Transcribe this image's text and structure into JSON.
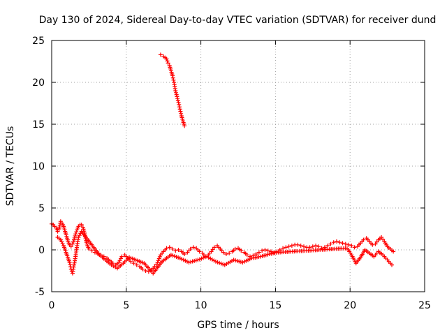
{
  "chart_data": {
    "type": "scatter",
    "title": "Day 130 of 2024, Sidereal Day-to-day VTEC variation (SDTVAR) for receiver dund",
    "xlabel": "GPS time / hours",
    "ylabel": "SDTVAR / TECUs",
    "xlim": [
      0,
      25
    ],
    "ylim": [
      -5,
      25
    ],
    "xticks": [
      "0",
      "5",
      "10",
      "15",
      "20",
      "25"
    ],
    "yticks": [
      "-5",
      "0",
      "5",
      "10",
      "15",
      "20",
      "25"
    ],
    "grid": true,
    "marker": "+",
    "series": [
      {
        "name": "SDTVAR",
        "color": "#ff0000",
        "segments": [
          {
            "x": [
              7.3,
              7.5,
              7.7,
              7.8,
              7.9,
              8.0,
              8.1,
              8.2,
              8.3,
              8.4,
              8.5,
              8.6,
              8.7,
              8.8,
              8.9
            ],
            "y": [
              23.3,
              23.1,
              22.8,
              22.3,
              22.0,
              21.4,
              20.8,
              20.0,
              19.0,
              18.3,
              17.6,
              16.8,
              16.0,
              15.4,
              14.8
            ]
          },
          {
            "x": [
              0.0,
              0.1,
              0.2,
              0.3,
              0.4,
              0.5,
              0.6,
              0.7,
              0.8,
              0.9,
              1.0,
              1.1,
              1.2,
              1.3,
              1.4,
              1.5,
              1.6,
              1.7,
              1.8,
              1.9,
              2.0,
              2.1,
              2.2,
              2.3,
              2.4,
              2.5,
              2.7,
              2.9,
              3.1,
              3.3,
              3.5,
              3.7,
              3.9,
              4.1,
              4.3,
              4.5,
              4.7,
              4.9,
              5.1,
              5.3,
              5.5,
              5.7,
              5.9,
              6.1,
              6.3,
              6.5,
              6.7,
              6.9,
              7.1,
              7.3,
              7.5,
              7.7,
              7.9,
              8.1,
              8.3,
              8.5,
              8.7,
              8.9,
              9.1,
              9.3,
              9.5,
              9.7,
              9.9,
              10.1,
              10.3,
              10.5,
              10.7,
              10.9,
              11.1,
              11.3,
              11.5,
              11.7,
              11.9,
              12.1,
              12.3,
              12.5,
              12.7,
              12.9,
              13.1,
              13.3,
              13.5,
              13.7,
              13.9,
              14.1,
              14.3,
              14.5,
              14.7,
              14.9,
              15.1,
              15.3,
              15.5,
              15.7,
              15.9,
              16.1,
              16.3,
              16.5,
              16.7,
              16.9,
              17.1,
              17.3,
              17.5,
              17.7,
              17.9,
              18.1,
              18.3,
              18.5,
              18.7,
              18.9,
              19.1,
              19.3,
              19.5,
              19.7,
              19.9,
              20.1,
              20.3,
              20.5,
              20.7,
              20.9,
              21.1,
              21.3,
              21.5,
              21.7,
              21.9,
              22.1,
              22.3,
              22.5,
              22.7,
              22.9
            ],
            "y": [
              3.1,
              3.0,
              2.8,
              2.6,
              2.2,
              2.5,
              3.4,
              3.2,
              2.8,
              2.2,
              1.6,
              1.0,
              0.6,
              0.4,
              0.7,
              1.2,
              1.9,
              2.4,
              2.8,
              3.0,
              3.0,
              2.7,
              2.0,
              1.1,
              0.5,
              0.1,
              -0.1,
              -0.3,
              -0.5,
              -0.6,
              -0.8,
              -1.0,
              -1.3,
              -1.6,
              -1.8,
              -1.5,
              -0.8,
              -0.6,
              -1.0,
              -1.4,
              -1.6,
              -1.8,
              -2.0,
              -2.3,
              -2.5,
              -2.6,
              -2.4,
              -2.0,
              -1.5,
              -0.6,
              -0.2,
              0.2,
              0.3,
              0.1,
              -0.1,
              0.0,
              -0.2,
              -0.5,
              -0.3,
              0.1,
              0.3,
              0.2,
              -0.2,
              -0.4,
              -0.8,
              -0.6,
              -0.2,
              0.3,
              0.5,
              0.1,
              -0.3,
              -0.5,
              -0.4,
              -0.2,
              0.1,
              0.2,
              -0.1,
              -0.3,
              -0.6,
              -0.8,
              -0.7,
              -0.5,
              -0.3,
              -0.1,
              0.0,
              -0.1,
              -0.2,
              -0.3,
              -0.2,
              0.0,
              0.2,
              0.3,
              0.4,
              0.5,
              0.6,
              0.6,
              0.5,
              0.4,
              0.3,
              0.3,
              0.4,
              0.5,
              0.4,
              0.2,
              0.3,
              0.5,
              0.7,
              0.9,
              1.0,
              0.9,
              0.8,
              0.7,
              0.6,
              0.5,
              0.3,
              0.4,
              0.8,
              1.2,
              1.4,
              1.0,
              0.6,
              0.7,
              1.2,
              1.5,
              1.0,
              0.4,
              0.1,
              -0.2
            ]
          },
          {
            "x": [
              0.4,
              0.6,
              0.8,
              1.0,
              1.2,
              1.3,
              1.4,
              1.5,
              1.6,
              1.7,
              1.8,
              2.0,
              3.2,
              3.6,
              4.0,
              4.4,
              4.8,
              5.2,
              6.2,
              6.8,
              7.4,
              8.0,
              8.6,
              9.2,
              9.8,
              10.4,
              11.0,
              11.6,
              12.2,
              12.8,
              13.4,
              14.0,
              14.6,
              15.2,
              19.8,
              20.1,
              20.4,
              20.7,
              21.0,
              21.3,
              21.6,
              21.9,
              22.2,
              22.5,
              22.8
            ],
            "y": [
              1.5,
              1.2,
              0.5,
              -0.5,
              -1.5,
              -2.3,
              -2.8,
              -1.8,
              -0.8,
              0.5,
              1.5,
              2.2,
              -0.6,
              -1.2,
              -1.8,
              -2.2,
              -1.6,
              -0.9,
              -1.6,
              -2.8,
              -1.4,
              -0.6,
              -1.0,
              -1.5,
              -1.2,
              -0.8,
              -1.4,
              -1.8,
              -1.2,
              -1.5,
              -1.0,
              -0.8,
              -0.5,
              -0.3,
              0.2,
              -0.6,
              -1.6,
              -0.9,
              0.0,
              -0.4,
              -0.8,
              -0.2,
              -0.6,
              -1.2,
              -1.8
            ]
          }
        ]
      }
    ]
  }
}
